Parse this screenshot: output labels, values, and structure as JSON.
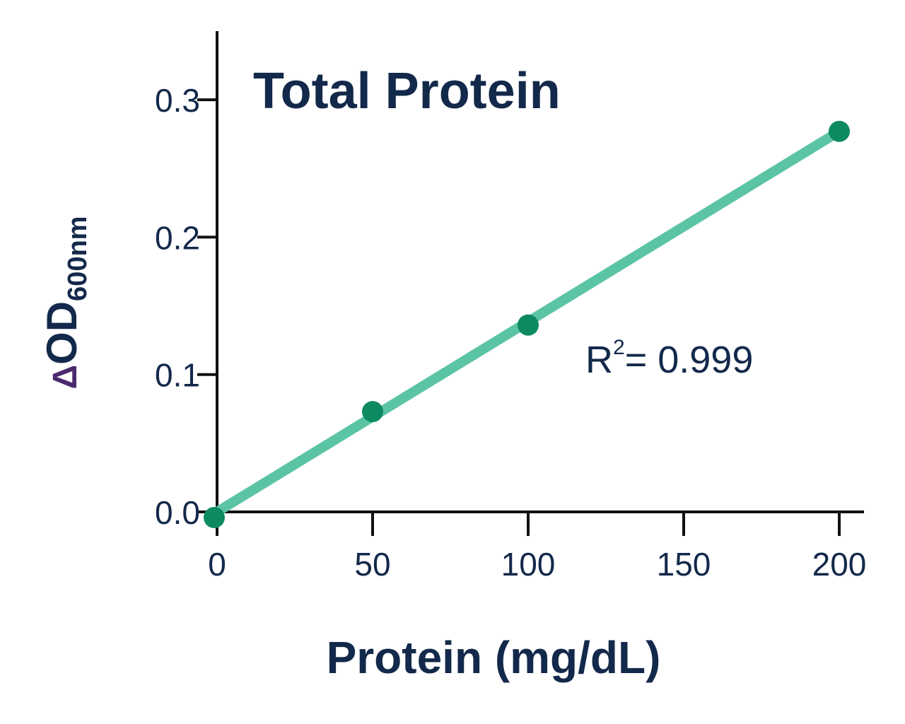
{
  "chart_data": {
    "type": "scatter",
    "title": "Total Protein",
    "xlabel": "Protein (mg/dL)",
    "ylabel": {
      "delta": "Δ",
      "main": "OD",
      "subscript": "600nm"
    },
    "xlim": [
      0,
      200
    ],
    "ylim": [
      0,
      0.35
    ],
    "x_ticks": [
      0,
      50,
      100,
      150,
      200
    ],
    "x_tick_labels": [
      "0",
      "50",
      "100",
      "150",
      "200"
    ],
    "y_ticks": [
      0.0,
      0.1,
      0.2,
      0.3
    ],
    "y_tick_labels": [
      "0.0",
      "0.1",
      "0.2",
      "0.3"
    ],
    "grid": false,
    "legend": "none",
    "series": [
      {
        "x": [
          0,
          50,
          100,
          200
        ],
        "y": [
          0.0,
          0.073,
          0.136,
          0.277
        ],
        "color": "#0e8a62"
      }
    ],
    "fit_line": {
      "x": [
        0,
        200
      ],
      "y": [
        0.0,
        0.277
      ],
      "color": "#5bc4a4"
    },
    "annotation": {
      "base": "R",
      "superscript": "2",
      "rest": "= 0.999"
    },
    "axis_color": "#111111"
  }
}
